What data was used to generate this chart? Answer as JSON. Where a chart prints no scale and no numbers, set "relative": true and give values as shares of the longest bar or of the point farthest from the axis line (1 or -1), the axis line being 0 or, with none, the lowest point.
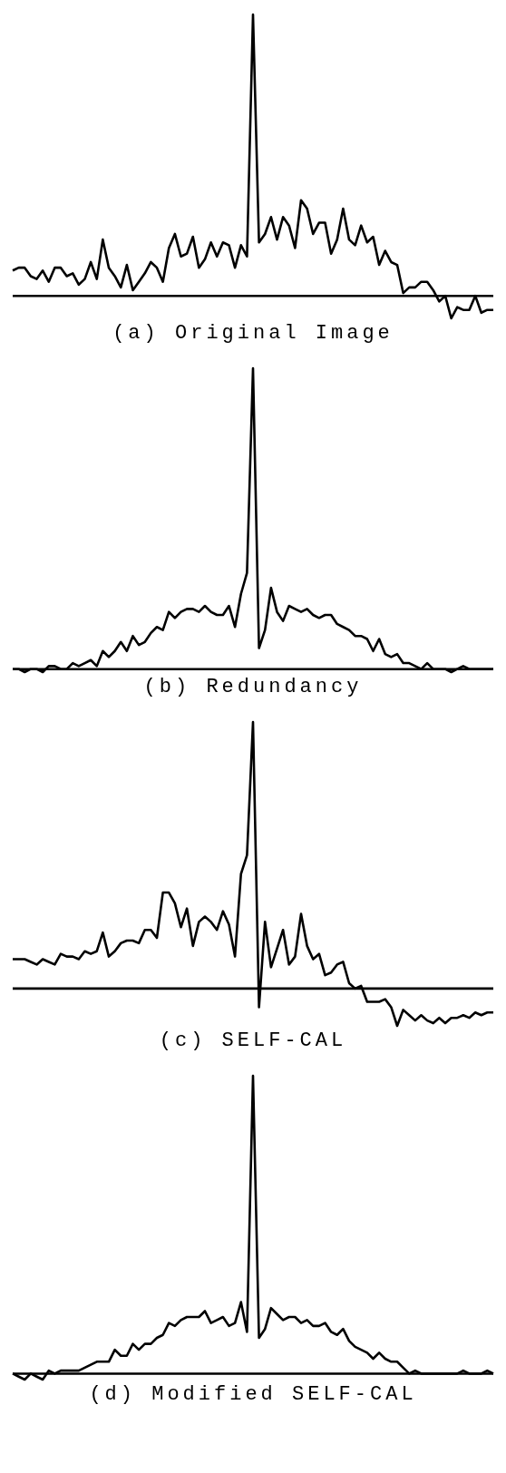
{
  "chart_data": [
    {
      "type": "line",
      "title": "(a) Original Image",
      "relative": true,
      "marker": "none",
      "categories": [
        null,
        null,
        null,
        null,
        null,
        null,
        null,
        null,
        null,
        null,
        null,
        null,
        null,
        null,
        null,
        null,
        null,
        null,
        null,
        null,
        null,
        null,
        null,
        null,
        null,
        null,
        null,
        null,
        null,
        null,
        null,
        null,
        null,
        null,
        null,
        null,
        null,
        null,
        null,
        null,
        null,
        null,
        null,
        null,
        null,
        null,
        null,
        null,
        null,
        null,
        null,
        null,
        null,
        null,
        null,
        null,
        null,
        null,
        null,
        null,
        null,
        null,
        null,
        null,
        null,
        null,
        null,
        null,
        null,
        null,
        null,
        null,
        null,
        null,
        null,
        null,
        null,
        null,
        null,
        null,
        null
      ],
      "series": [
        {
          "color": "#000000",
          "values": [
            0.09,
            0.1,
            0.1,
            0.07,
            0.06,
            0.09,
            0.05,
            0.1,
            0.1,
            0.07,
            0.08,
            0.04,
            0.06,
            0.12,
            0.06,
            0.2,
            0.1,
            0.07,
            0.03,
            0.11,
            0.02,
            0.05,
            0.08,
            0.12,
            0.1,
            0.05,
            0.17,
            0.22,
            0.14,
            0.15,
            0.21,
            0.1,
            0.13,
            0.19,
            0.14,
            0.19,
            0.18,
            0.1,
            0.18,
            0.14,
            1.0,
            0.19,
            0.22,
            0.28,
            0.2,
            0.28,
            0.25,
            0.17,
            0.34,
            0.31,
            0.22,
            0.26,
            0.26,
            0.15,
            0.2,
            0.31,
            0.2,
            0.18,
            0.25,
            0.19,
            0.21,
            0.11,
            0.16,
            0.12,
            0.11,
            0.01,
            0.03,
            0.03,
            0.05,
            0.05,
            0.02,
            -0.02,
            0.0,
            -0.08,
            -0.04,
            -0.05,
            -0.05,
            0.0,
            -0.06,
            -0.05,
            -0.05
          ]
        }
      ]
    },
    {
      "type": "line",
      "title": "(b) Redundancy",
      "relative": true,
      "marker": "none",
      "categories": [
        null,
        null,
        null,
        null,
        null,
        null,
        null,
        null,
        null,
        null,
        null,
        null,
        null,
        null,
        null,
        null,
        null,
        null,
        null,
        null,
        null,
        null,
        null,
        null,
        null,
        null,
        null,
        null,
        null,
        null,
        null,
        null,
        null,
        null,
        null,
        null,
        null,
        null,
        null,
        null,
        null,
        null,
        null,
        null,
        null,
        null,
        null,
        null,
        null,
        null,
        null,
        null,
        null,
        null,
        null,
        null,
        null,
        null,
        null,
        null,
        null,
        null,
        null,
        null,
        null,
        null,
        null,
        null,
        null,
        null,
        null,
        null,
        null,
        null,
        null,
        null,
        null,
        null,
        null,
        null,
        null
      ],
      "series": [
        {
          "color": "#000000",
          "values": [
            0.0,
            0.0,
            -0.01,
            0.0,
            0.0,
            -0.01,
            0.01,
            0.01,
            0.0,
            0.0,
            0.02,
            0.01,
            0.02,
            0.03,
            0.01,
            0.06,
            0.04,
            0.06,
            0.09,
            0.06,
            0.11,
            0.08,
            0.09,
            0.12,
            0.14,
            0.13,
            0.19,
            0.17,
            0.19,
            0.2,
            0.2,
            0.19,
            0.21,
            0.19,
            0.18,
            0.18,
            0.21,
            0.14,
            0.25,
            0.32,
            1.0,
            0.07,
            0.13,
            0.27,
            0.19,
            0.16,
            0.21,
            0.2,
            0.19,
            0.2,
            0.18,
            0.17,
            0.18,
            0.18,
            0.15,
            0.14,
            0.13,
            0.11,
            0.11,
            0.1,
            0.06,
            0.1,
            0.05,
            0.04,
            0.05,
            0.02,
            0.02,
            0.01,
            0.0,
            0.02,
            0.0,
            0.0,
            0.0,
            -0.01,
            0.0,
            0.01,
            0.0,
            0.0,
            0.0,
            0.0,
            0.0
          ]
        }
      ]
    },
    {
      "type": "line",
      "title": "(c) SELF-CAL",
      "relative": true,
      "marker": "none",
      "categories": [
        null,
        null,
        null,
        null,
        null,
        null,
        null,
        null,
        null,
        null,
        null,
        null,
        null,
        null,
        null,
        null,
        null,
        null,
        null,
        null,
        null,
        null,
        null,
        null,
        null,
        null,
        null,
        null,
        null,
        null,
        null,
        null,
        null,
        null,
        null,
        null,
        null,
        null,
        null,
        null,
        null,
        null,
        null,
        null,
        null,
        null,
        null,
        null,
        null,
        null,
        null,
        null,
        null,
        null,
        null,
        null,
        null,
        null,
        null,
        null,
        null,
        null,
        null,
        null,
        null,
        null,
        null,
        null,
        null,
        null,
        null,
        null,
        null,
        null,
        null,
        null,
        null,
        null,
        null,
        null,
        null
      ],
      "series": [
        {
          "color": "#000000",
          "values": [
            0.11,
            0.11,
            0.11,
            0.1,
            0.09,
            0.11,
            0.1,
            0.09,
            0.13,
            0.12,
            0.12,
            0.11,
            0.14,
            0.13,
            0.14,
            0.21,
            0.12,
            0.14,
            0.17,
            0.18,
            0.18,
            0.17,
            0.22,
            0.22,
            0.19,
            0.36,
            0.36,
            0.32,
            0.23,
            0.3,
            0.16,
            0.25,
            0.27,
            0.25,
            0.22,
            0.29,
            0.24,
            0.12,
            0.43,
            0.5,
            1.0,
            -0.07,
            0.25,
            0.08,
            0.15,
            0.22,
            0.09,
            0.12,
            0.28,
            0.16,
            0.11,
            0.13,
            0.05,
            0.06,
            0.09,
            0.1,
            0.02,
            0.0,
            0.01,
            -0.05,
            -0.05,
            -0.05,
            -0.04,
            -0.07,
            -0.14,
            -0.08,
            -0.1,
            -0.12,
            -0.1,
            -0.12,
            -0.13,
            -0.11,
            -0.13,
            -0.11,
            -0.11,
            -0.1,
            -0.11,
            -0.09,
            -0.1,
            -0.09,
            -0.09
          ]
        }
      ]
    },
    {
      "type": "line",
      "title": "(d) Modified SELF-CAL",
      "relative": true,
      "marker": "none",
      "categories": [
        null,
        null,
        null,
        null,
        null,
        null,
        null,
        null,
        null,
        null,
        null,
        null,
        null,
        null,
        null,
        null,
        null,
        null,
        null,
        null,
        null,
        null,
        null,
        null,
        null,
        null,
        null,
        null,
        null,
        null,
        null,
        null,
        null,
        null,
        null,
        null,
        null,
        null,
        null,
        null,
        null,
        null,
        null,
        null,
        null,
        null,
        null,
        null,
        null,
        null,
        null,
        null,
        null,
        null,
        null,
        null,
        null,
        null,
        null,
        null,
        null,
        null,
        null,
        null,
        null,
        null,
        null,
        null,
        null,
        null,
        null,
        null,
        null,
        null,
        null,
        null,
        null,
        null,
        null,
        null,
        null
      ],
      "series": [
        {
          "color": "#000000",
          "values": [
            0.0,
            -0.01,
            -0.02,
            0.0,
            -0.01,
            -0.02,
            0.01,
            0.0,
            0.01,
            0.01,
            0.01,
            0.01,
            0.02,
            0.03,
            0.04,
            0.04,
            0.04,
            0.08,
            0.06,
            0.06,
            0.1,
            0.08,
            0.1,
            0.1,
            0.12,
            0.13,
            0.17,
            0.16,
            0.18,
            0.19,
            0.19,
            0.19,
            0.21,
            0.17,
            0.18,
            0.19,
            0.16,
            0.17,
            0.24,
            0.14,
            1.0,
            0.12,
            0.15,
            0.22,
            0.2,
            0.18,
            0.19,
            0.19,
            0.17,
            0.18,
            0.16,
            0.16,
            0.17,
            0.14,
            0.13,
            0.15,
            0.11,
            0.09,
            0.08,
            0.07,
            0.05,
            0.07,
            0.05,
            0.04,
            0.04,
            0.02,
            0.0,
            0.01,
            0.0,
            0.0,
            0.0,
            0.0,
            0.0,
            0.0,
            0.0,
            0.01,
            0.0,
            0.0,
            0.0,
            0.01,
            0.0
          ]
        }
      ]
    }
  ]
}
